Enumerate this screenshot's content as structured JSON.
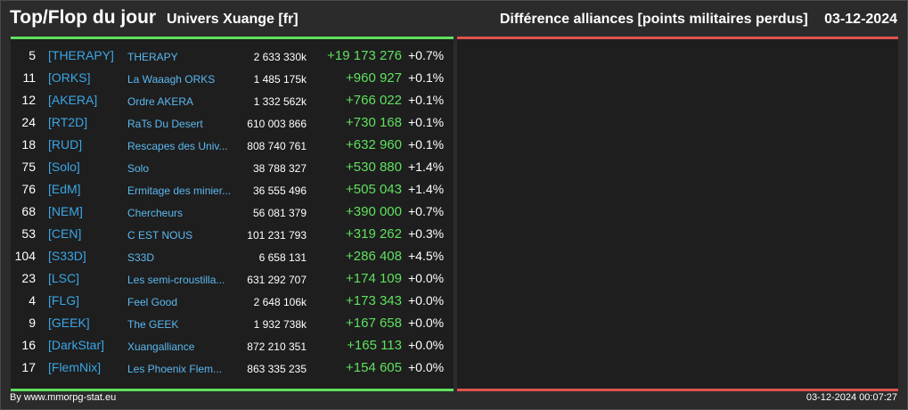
{
  "header": {
    "title": "Top/Flop du jour",
    "subtitle": "Univers Xuange [fr]",
    "metric": "Différence alliances [points militaires perdus]",
    "date": "03-12-2024"
  },
  "colors": {
    "top_accent": "#5fe05f",
    "flop_accent": "#e0534f",
    "tag": "#3aa6e6",
    "name": "#5bb8f0"
  },
  "top_rows": [
    {
      "rank": "5",
      "tag": "[THERAPY]",
      "name": "THERAPY",
      "points": "2 633 330k",
      "diff": "+19 173 276",
      "pct": "+0.7%"
    },
    {
      "rank": "11",
      "tag": "[ORKS]",
      "name": "La Waaagh ORKS",
      "points": "1 485 175k",
      "diff": "+960 927",
      "pct": "+0.1%"
    },
    {
      "rank": "12",
      "tag": "[AKERA]",
      "name": "Ordre AKERA",
      "points": "1 332 562k",
      "diff": "+766 022",
      "pct": "+0.1%"
    },
    {
      "rank": "24",
      "tag": "[RT2D]",
      "name": "RaTs Du Desert",
      "points": "610 003 866",
      "diff": "+730 168",
      "pct": "+0.1%"
    },
    {
      "rank": "18",
      "tag": "[RUD]",
      "name": "Rescapes des Univ...",
      "points": "808 740 761",
      "diff": "+632 960",
      "pct": "+0.1%"
    },
    {
      "rank": "75",
      "tag": "[Solo]",
      "name": "Solo",
      "points": "38 788 327",
      "diff": "+530 880",
      "pct": "+1.4%"
    },
    {
      "rank": "76",
      "tag": "[EdM]",
      "name": "Ermitage des minier...",
      "points": "36 555 496",
      "diff": "+505 043",
      "pct": "+1.4%"
    },
    {
      "rank": "68",
      "tag": "[NEM]",
      "name": "Chercheurs",
      "points": "56 081 379",
      "diff": "+390 000",
      "pct": "+0.7%"
    },
    {
      "rank": "53",
      "tag": "[CEN]",
      "name": "C EST NOUS",
      "points": "101 231 793",
      "diff": "+319 262",
      "pct": "+0.3%"
    },
    {
      "rank": "104",
      "tag": "[S33D]",
      "name": "S33D",
      "points": "6 658 131",
      "diff": "+286 408",
      "pct": "+4.5%"
    },
    {
      "rank": "23",
      "tag": "[LSC]",
      "name": "Les semi-croustilla...",
      "points": "631 292 707",
      "diff": "+174 109",
      "pct": "+0.0%"
    },
    {
      "rank": "4",
      "tag": "[FLG]",
      "name": "Feel Good",
      "points": "2 648 106k",
      "diff": "+173 343",
      "pct": "+0.0%"
    },
    {
      "rank": "9",
      "tag": "[GEEK]",
      "name": "The GEEK",
      "points": "1 932 738k",
      "diff": "+167 658",
      "pct": "+0.0%"
    },
    {
      "rank": "16",
      "tag": "[DarkStar]",
      "name": "Xuangalliance",
      "points": "872 210 351",
      "diff": "+165 113",
      "pct": "+0.0%"
    },
    {
      "rank": "17",
      "tag": "[FlemNix]",
      "name": "Les Phoenix Flem...",
      "points": "863 335 235",
      "diff": "+154 605",
      "pct": "+0.0%"
    }
  ],
  "footer": {
    "credit": "By www.mmorpg-stat.eu",
    "timestamp": "03-12-2024 00:07:27"
  }
}
